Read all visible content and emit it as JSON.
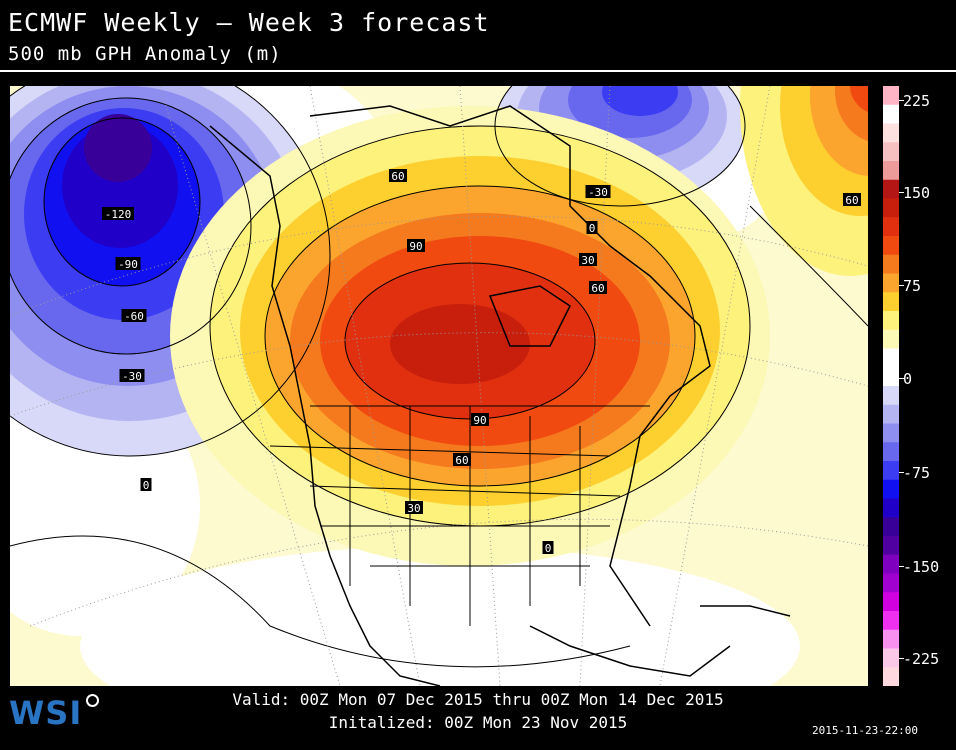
{
  "header": {
    "title": "ECMWF Weekly — Week 3 forecast",
    "subtitle": "500 mb GPH Anomaly (m)"
  },
  "footer": {
    "valid": "Valid: 00Z Mon 07 Dec 2015 thru 00Z Mon 14 Dec 2015",
    "initialized": "Initalized: 00Z Mon 23 Nov 2015",
    "timestamp": "2015-11-23-22:00",
    "logo": "WSI"
  },
  "colorbar": {
    "labels": [
      "225",
      "150",
      "75",
      "0",
      "-75",
      "-150",
      "-225"
    ],
    "colors": [
      "#ffb5c5",
      "#ffffff",
      "#fde0e0",
      "#f6c0c0",
      "#ec9a9a",
      "#b41616",
      "#c81e0c",
      "#e03010",
      "#f04a10",
      "#f57a1e",
      "#fba52e",
      "#fdd030",
      "#fdf27c",
      "#fcf8b6",
      "#ffffff",
      "#ffffff",
      "#d8d8f8",
      "#b4b4f2",
      "#8e8ef0",
      "#6868ee",
      "#3c3cf2",
      "#1010f0",
      "#2000c8",
      "#380098",
      "#5000a0",
      "#8000c0",
      "#a000d0",
      "#d000e0",
      "#f030f0",
      "#f890f0",
      "#fcc8e8",
      "#ffd8e0"
    ]
  },
  "map": {
    "contour_labels": [
      {
        "text": "-120"
      },
      {
        "text": "-90"
      },
      {
        "text": "-60"
      },
      {
        "text": "-30"
      },
      {
        "text": "0"
      },
      {
        "text": "60"
      },
      {
        "text": "90"
      },
      {
        "text": "90"
      },
      {
        "text": "60"
      },
      {
        "text": "30"
      },
      {
        "text": "0"
      },
      {
        "text": "-30"
      },
      {
        "text": "0"
      },
      {
        "text": "30"
      },
      {
        "text": "60"
      },
      {
        "text": "60"
      }
    ]
  }
}
